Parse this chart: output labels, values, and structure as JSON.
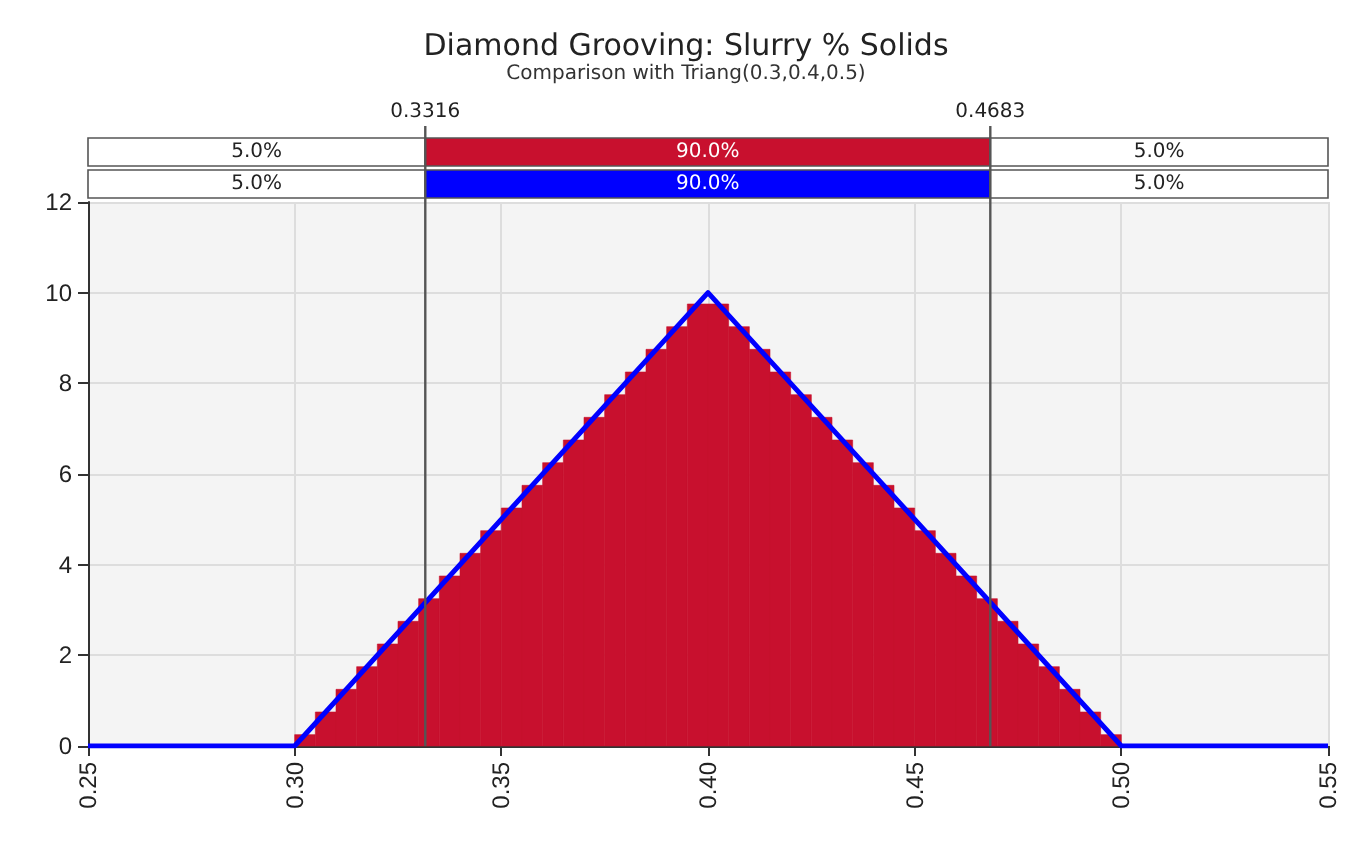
{
  "chart_data": {
    "type": "histogram",
    "title": "Diamond Grooving: Slurry % Solids",
    "subtitle": "Comparison with Triang(0.3,0.4,0.5)",
    "xlim": [
      0.25,
      0.55
    ],
    "xticks": [
      {
        "value": 0.25,
        "label": "0.25"
      },
      {
        "value": 0.3,
        "label": "0.30"
      },
      {
        "value": 0.35,
        "label": "0.35"
      },
      {
        "value": 0.4,
        "label": "0.40"
      },
      {
        "value": 0.45,
        "label": "0.45"
      },
      {
        "value": 0.5,
        "label": "0.50"
      },
      {
        "value": 0.55,
        "label": "0.55"
      }
    ],
    "ylim": [
      0,
      12
    ],
    "yticks": [
      0,
      2,
      4,
      6,
      8,
      10,
      12
    ],
    "grid": true,
    "series": [
      {
        "color": "#c8102e",
        "bins": [
          0.3,
          0.305,
          0.31,
          0.315,
          0.32,
          0.325,
          0.33,
          0.335,
          0.34,
          0.345,
          0.35,
          0.355,
          0.36,
          0.365,
          0.37,
          0.375,
          0.38,
          0.385,
          0.39,
          0.395,
          0.4,
          0.405,
          0.41,
          0.415,
          0.42,
          0.425,
          0.43,
          0.435,
          0.44,
          0.445,
          0.45,
          0.455,
          0.46,
          0.465,
          0.47,
          0.475,
          0.48,
          0.485,
          0.49,
          0.495,
          0.5
        ],
        "values": [
          0.25,
          0.75,
          1.25,
          1.75,
          2.25,
          2.75,
          3.25,
          3.75,
          4.25,
          4.75,
          5.25,
          5.75,
          6.25,
          6.75,
          7.25,
          7.75,
          8.25,
          8.75,
          9.25,
          9.75,
          9.75,
          9.25,
          8.75,
          8.25,
          7.75,
          7.25,
          6.75,
          6.25,
          5.75,
          5.25,
          4.75,
          4.25,
          3.75,
          3.25,
          2.75,
          2.25,
          1.75,
          1.25,
          0.75,
          0.25
        ]
      },
      {
        "type": "line",
        "color": "#0000ff",
        "x": [
          0.25,
          0.3,
          0.4,
          0.5,
          0.55
        ],
        "values": [
          0,
          0,
          10,
          0,
          0
        ],
        "marker": "none",
        "line_style": "solid"
      }
    ],
    "ref_lines": [
      {
        "axis": "x",
        "value": 0.3316,
        "label": "0.3316",
        "color": "#555555"
      },
      {
        "axis": "x",
        "value": 0.4683,
        "label": "0.4683",
        "color": "#555555"
      }
    ],
    "annotations": [
      "5.0%",
      "90.0%",
      "5.0%",
      "5.0%",
      "90.0%",
      "5.0%"
    ]
  }
}
